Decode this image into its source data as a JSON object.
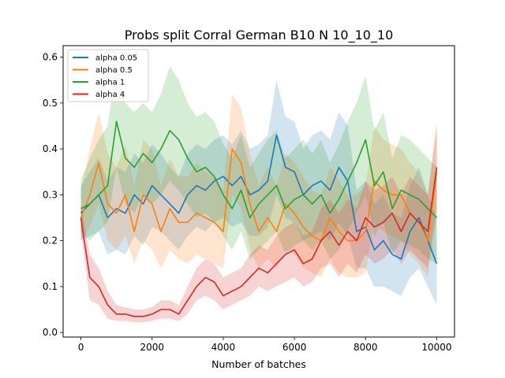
{
  "chart_data": {
    "type": "line",
    "title": "Probs split Corral German B10 N 10_10_10",
    "xlabel": "Number of batches",
    "ylabel": "",
    "xlim": [
      -500,
      10500
    ],
    "ylim": [
      -0.01,
      0.625
    ],
    "xticks": [
      0,
      2000,
      4000,
      6000,
      8000,
      10000
    ],
    "xtick_labels": [
      "0",
      "2000",
      "4000",
      "6000",
      "8000",
      "10000"
    ],
    "yticks": [
      0.0,
      0.1,
      0.2,
      0.3,
      0.4,
      0.5,
      0.6
    ],
    "ytick_labels": [
      "0.0",
      "0.1",
      "0.2",
      "0.3",
      "0.4",
      "0.5",
      "0.6"
    ],
    "grid": false,
    "legend_position": "upper-left",
    "x": [
      0,
      250,
      500,
      750,
      1000,
      1250,
      1500,
      1750,
      2000,
      2250,
      2500,
      2750,
      3000,
      3250,
      3500,
      3750,
      4000,
      4250,
      4500,
      4750,
      5000,
      5250,
      5500,
      5750,
      6000,
      6250,
      6500,
      6750,
      7000,
      7250,
      7500,
      7750,
      8000,
      8250,
      8500,
      8750,
      9000,
      9250,
      9500,
      9750,
      10000
    ],
    "series": [
      {
        "name": "alpha 0.05",
        "color": "#1f77b4",
        "values": [
          0.26,
          0.28,
          0.3,
          0.25,
          0.27,
          0.26,
          0.3,
          0.28,
          0.32,
          0.3,
          0.28,
          0.26,
          0.3,
          0.32,
          0.31,
          0.33,
          0.34,
          0.32,
          0.34,
          0.3,
          0.31,
          0.33,
          0.43,
          0.36,
          0.35,
          0.3,
          0.32,
          0.33,
          0.31,
          0.36,
          0.33,
          0.22,
          0.23,
          0.18,
          0.2,
          0.17,
          0.16,
          0.22,
          0.25,
          0.2,
          0.15
        ],
        "band_lower": [
          0.2,
          0.21,
          0.22,
          0.17,
          0.18,
          0.17,
          0.21,
          0.19,
          0.23,
          0.22,
          0.2,
          0.18,
          0.21,
          0.23,
          0.22,
          0.24,
          0.25,
          0.23,
          0.24,
          0.21,
          0.21,
          0.23,
          0.3,
          0.25,
          0.24,
          0.2,
          0.21,
          0.22,
          0.2,
          0.24,
          0.21,
          0.14,
          0.14,
          0.1,
          0.1,
          0.09,
          0.08,
          0.12,
          0.14,
          0.1,
          0.06
        ],
        "band_upper": [
          0.32,
          0.35,
          0.38,
          0.33,
          0.36,
          0.35,
          0.39,
          0.37,
          0.41,
          0.39,
          0.36,
          0.34,
          0.39,
          0.41,
          0.4,
          0.42,
          0.43,
          0.41,
          0.44,
          0.4,
          0.41,
          0.43,
          0.55,
          0.47,
          0.46,
          0.4,
          0.43,
          0.44,
          0.42,
          0.48,
          0.45,
          0.31,
          0.33,
          0.28,
          0.3,
          0.26,
          0.25,
          0.32,
          0.36,
          0.3,
          0.25
        ]
      },
      {
        "name": "alpha 0.5",
        "color": "#ff7f0e",
        "values": [
          0.25,
          0.3,
          0.37,
          0.28,
          0.26,
          0.3,
          0.22,
          0.3,
          0.28,
          0.22,
          0.27,
          0.24,
          0.24,
          0.26,
          0.25,
          0.24,
          0.22,
          0.4,
          0.37,
          0.28,
          0.22,
          0.25,
          0.22,
          0.28,
          0.26,
          0.23,
          0.21,
          0.2,
          0.25,
          0.22,
          0.2,
          0.2,
          0.22,
          0.33,
          0.31,
          0.3,
          0.3,
          0.26,
          0.24,
          0.2,
          0.35
        ],
        "band_lower": [
          0.2,
          0.23,
          0.28,
          0.2,
          0.18,
          0.21,
          0.15,
          0.2,
          0.18,
          0.14,
          0.18,
          0.16,
          0.15,
          0.17,
          0.16,
          0.15,
          0.14,
          0.3,
          0.27,
          0.18,
          0.14,
          0.16,
          0.14,
          0.18,
          0.17,
          0.14,
          0.13,
          0.12,
          0.16,
          0.13,
          0.12,
          0.12,
          0.13,
          0.24,
          0.22,
          0.21,
          0.2,
          0.17,
          0.15,
          0.12,
          0.26
        ],
        "band_upper": [
          0.31,
          0.4,
          0.48,
          0.39,
          0.36,
          0.41,
          0.32,
          0.42,
          0.4,
          0.32,
          0.38,
          0.34,
          0.34,
          0.37,
          0.35,
          0.34,
          0.31,
          0.52,
          0.49,
          0.39,
          0.32,
          0.36,
          0.32,
          0.39,
          0.37,
          0.34,
          0.31,
          0.3,
          0.36,
          0.33,
          0.3,
          0.3,
          0.32,
          0.45,
          0.42,
          0.41,
          0.4,
          0.37,
          0.35,
          0.3,
          0.46
        ]
      },
      {
        "name": "alpha 1",
        "color": "#2ca02c",
        "values": [
          0.27,
          0.28,
          0.3,
          0.32,
          0.46,
          0.38,
          0.36,
          0.39,
          0.37,
          0.4,
          0.44,
          0.42,
          0.38,
          0.35,
          0.36,
          0.34,
          0.3,
          0.27,
          0.31,
          0.25,
          0.28,
          0.3,
          0.32,
          0.27,
          0.29,
          0.3,
          0.28,
          0.3,
          0.26,
          0.29,
          0.33,
          0.37,
          0.42,
          0.32,
          0.35,
          0.27,
          0.31,
          0.3,
          0.29,
          0.27,
          0.25
        ],
        "band_lower": [
          0.22,
          0.2,
          0.22,
          0.24,
          0.36,
          0.28,
          0.26,
          0.3,
          0.28,
          0.3,
          0.33,
          0.31,
          0.28,
          0.25,
          0.26,
          0.24,
          0.21,
          0.18,
          0.22,
          0.16,
          0.18,
          0.2,
          0.22,
          0.17,
          0.19,
          0.2,
          0.18,
          0.2,
          0.16,
          0.18,
          0.22,
          0.26,
          0.3,
          0.21,
          0.24,
          0.17,
          0.2,
          0.19,
          0.18,
          0.16,
          0.15
        ],
        "band_upper": [
          0.33,
          0.38,
          0.42,
          0.45,
          0.58,
          0.5,
          0.48,
          0.5,
          0.48,
          0.52,
          0.58,
          0.55,
          0.5,
          0.47,
          0.48,
          0.46,
          0.41,
          0.38,
          0.43,
          0.36,
          0.39,
          0.42,
          0.44,
          0.38,
          0.4,
          0.42,
          0.39,
          0.42,
          0.37,
          0.41,
          0.46,
          0.5,
          0.56,
          0.44,
          0.48,
          0.38,
          0.43,
          0.42,
          0.4,
          0.38,
          0.36
        ]
      },
      {
        "name": "alpha 4",
        "color": "#d62728",
        "values": [
          0.25,
          0.12,
          0.1,
          0.06,
          0.04,
          0.04,
          0.035,
          0.035,
          0.04,
          0.05,
          0.05,
          0.04,
          0.07,
          0.1,
          0.12,
          0.11,
          0.08,
          0.09,
          0.1,
          0.12,
          0.14,
          0.13,
          0.15,
          0.17,
          0.18,
          0.15,
          0.16,
          0.2,
          0.22,
          0.19,
          0.22,
          0.2,
          0.25,
          0.23,
          0.24,
          0.26,
          0.22,
          0.26,
          0.24,
          0.22,
          0.36
        ],
        "band_lower": [
          0.22,
          0.07,
          0.06,
          0.03,
          0.025,
          0.025,
          0.022,
          0.022,
          0.025,
          0.03,
          0.03,
          0.025,
          0.04,
          0.07,
          0.08,
          0.07,
          0.05,
          0.06,
          0.07,
          0.08,
          0.1,
          0.09,
          0.1,
          0.11,
          0.12,
          0.1,
          0.11,
          0.14,
          0.15,
          0.12,
          0.15,
          0.13,
          0.17,
          0.15,
          0.16,
          0.18,
          0.15,
          0.18,
          0.16,
          0.14,
          0.27
        ],
        "band_upper": [
          0.28,
          0.17,
          0.14,
          0.09,
          0.06,
          0.055,
          0.05,
          0.05,
          0.055,
          0.07,
          0.07,
          0.06,
          0.1,
          0.14,
          0.16,
          0.15,
          0.12,
          0.13,
          0.14,
          0.17,
          0.19,
          0.18,
          0.21,
          0.23,
          0.24,
          0.21,
          0.22,
          0.27,
          0.29,
          0.26,
          0.29,
          0.27,
          0.33,
          0.31,
          0.32,
          0.34,
          0.3,
          0.34,
          0.32,
          0.3,
          0.45
        ]
      }
    ]
  }
}
